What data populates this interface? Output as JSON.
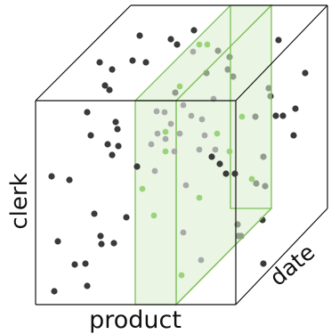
{
  "labels": {
    "clerk": "clerk",
    "product": "product",
    "date": "date"
  },
  "colors": {
    "edge": "#111111",
    "dot_dark": "#3a3a3a",
    "dot_light": "#a9a9a9",
    "dot_green": "#9bd37a",
    "slice_fill": "#d8edcc",
    "slice_edge": "#7cc05a"
  }
}
